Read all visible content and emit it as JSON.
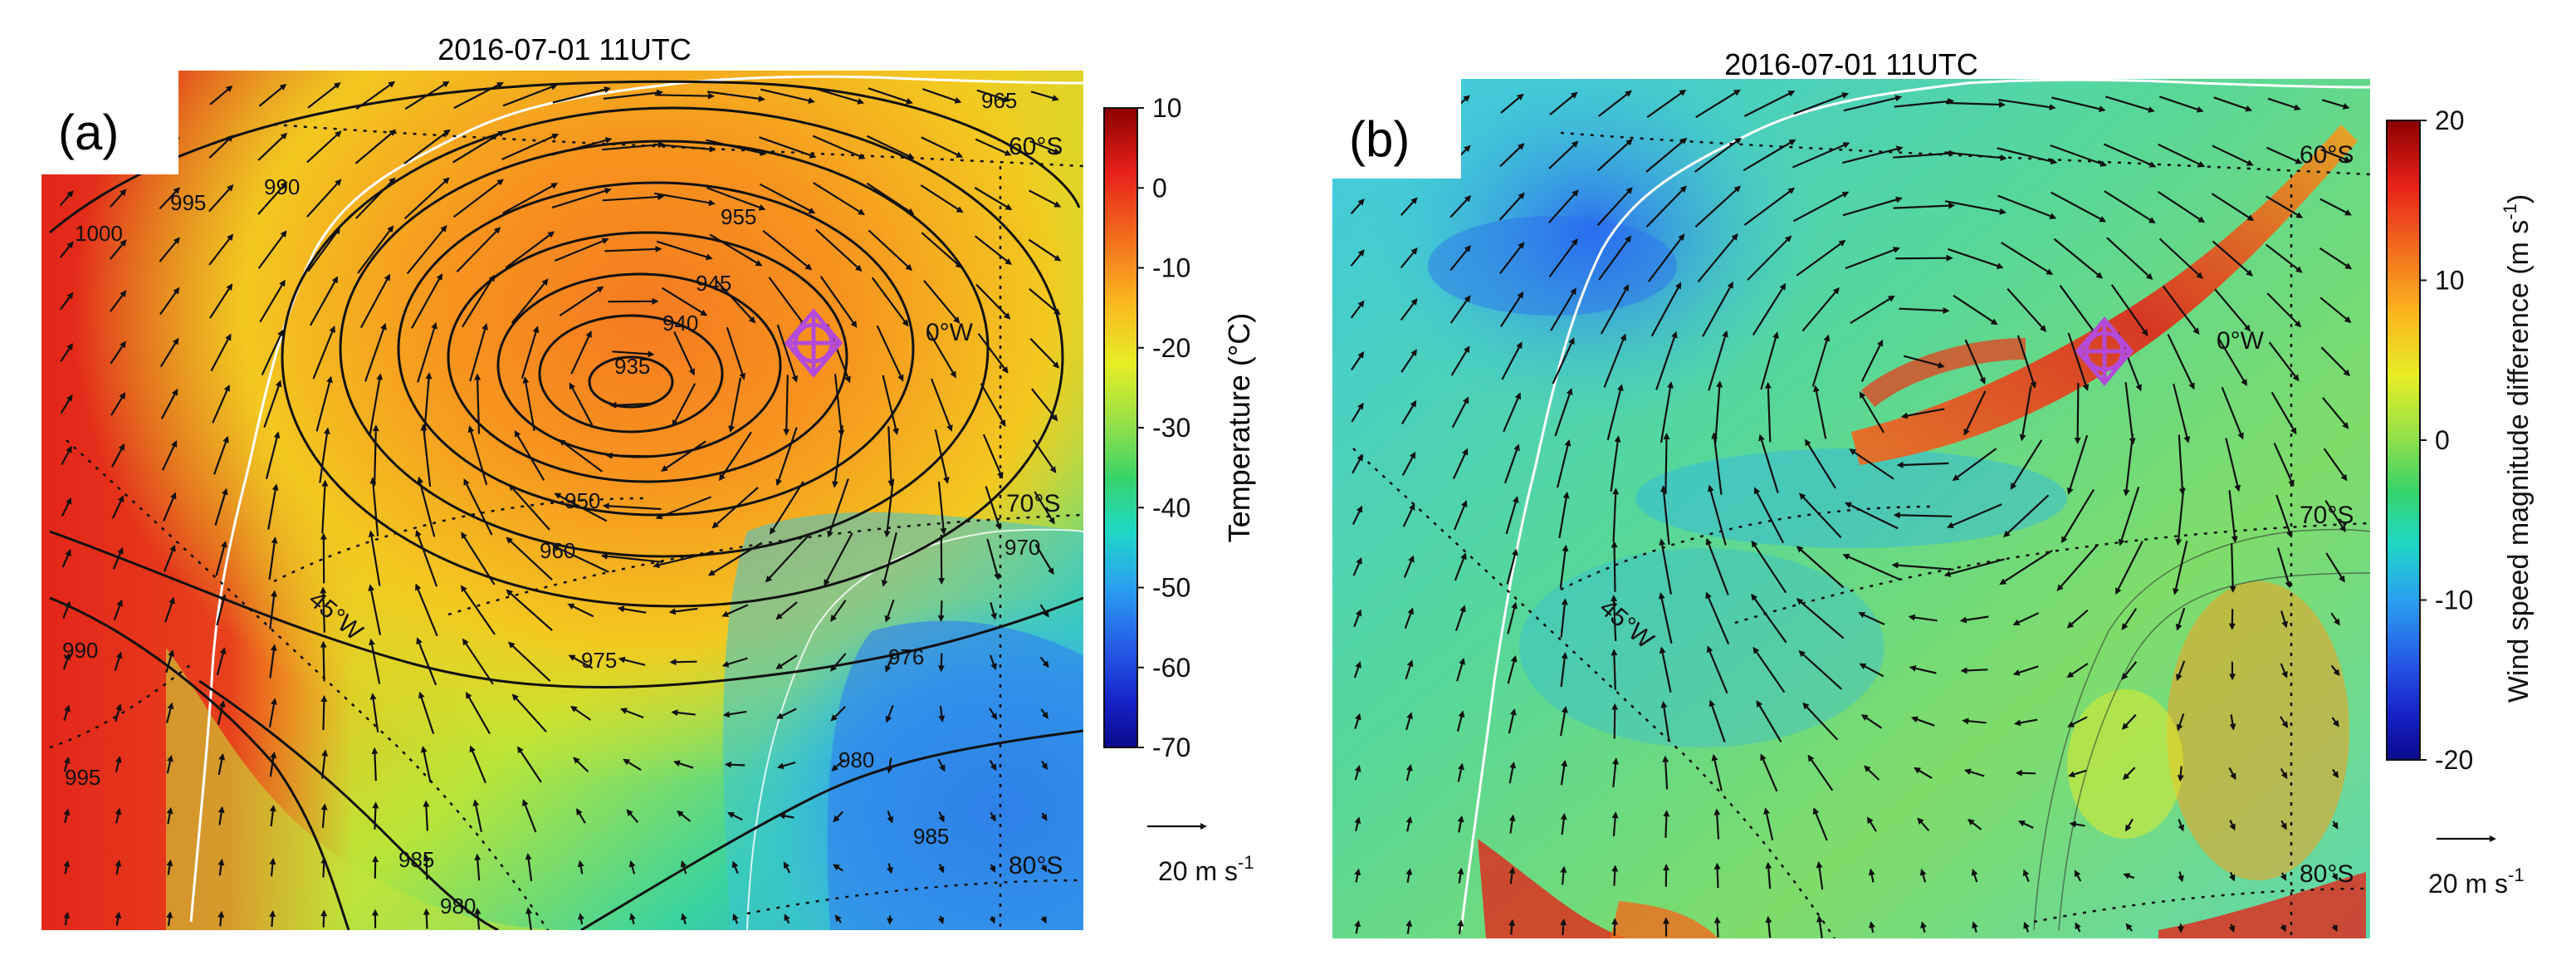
{
  "panels": [
    {
      "id": "a",
      "title": "2016-07-01 11UTC",
      "label": "(a)",
      "field": "temperature",
      "colorbar": {
        "label": "Temperature (°C)",
        "ticks": [
          "10",
          "0",
          "-10",
          "-20",
          "-30",
          "-40",
          "-50",
          "-60",
          "-70"
        ],
        "min": -70,
        "max": 10,
        "colors": [
          "#8b0000",
          "#e8201a",
          "#f26b1d",
          "#fbb51e",
          "#e6ee24",
          "#9fe33d",
          "#37d36b",
          "#1fd9c4",
          "#2aa0f0",
          "#2557e6",
          "#1622c8",
          "#0a0a8a"
        ]
      },
      "isobars": [
        "1000",
        "995",
        "990",
        "965",
        "955",
        "945",
        "940",
        "935",
        "950",
        "960",
        "970",
        "975",
        "976",
        "980",
        "985",
        "990",
        "995",
        "980",
        "985"
      ],
      "graticule": [
        "60°S",
        "0°W",
        "70°S",
        "45°W",
        "80°S"
      ],
      "vector_key": {
        "value": "20",
        "unit": "m s",
        "exp": "-1"
      }
    },
    {
      "id": "b",
      "title": "2016-07-01 11UTC",
      "label": "(b)",
      "field": "wind speed magnitude difference",
      "colorbar": {
        "label": "Wind speed magnitude difference (m s",
        "label_exp": "-1",
        "label_close": ")",
        "ticks": [
          "20",
          "10",
          "0",
          "-10",
          "-20"
        ],
        "min": -20,
        "max": 20,
        "colors": [
          "#8b0000",
          "#e8201a",
          "#f26b1d",
          "#fbb51e",
          "#e6ee24",
          "#9fe33d",
          "#37d36b",
          "#1fd9c4",
          "#2aa0f0",
          "#2557e6",
          "#1622c8",
          "#0a0a8a"
        ]
      },
      "graticule": [
        "60°S",
        "0°W",
        "70°S",
        "45°W",
        "80°S"
      ],
      "vector_key": {
        "value": "20",
        "unit": "m s",
        "exp": "-1"
      }
    }
  ]
}
